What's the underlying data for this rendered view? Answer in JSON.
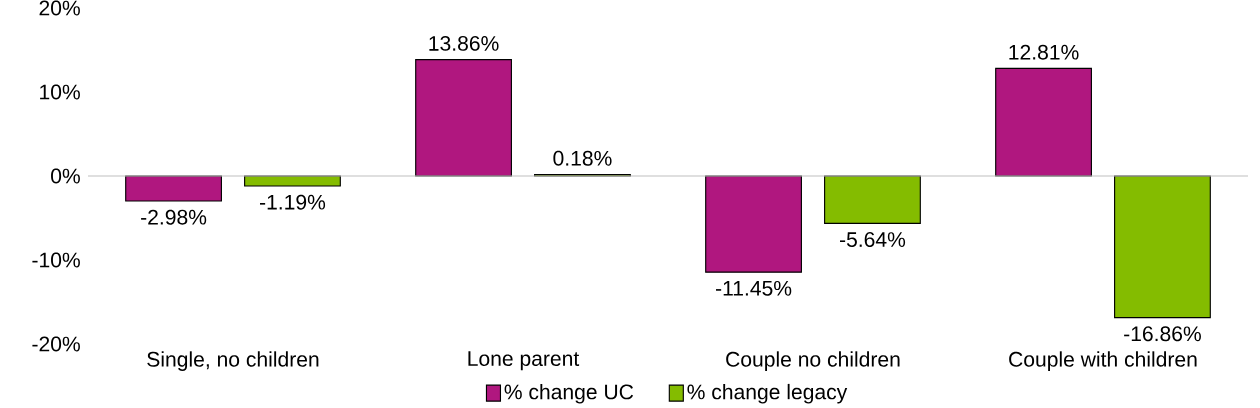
{
  "chart_data": {
    "type": "bar",
    "categories": [
      "Single, no children",
      "Lone parent",
      "Couple no children",
      "Couple with children"
    ],
    "series": [
      {
        "name": "% change UC",
        "color": "#b0177f",
        "values": [
          -2.98,
          13.86,
          -11.45,
          12.81
        ],
        "value_labels": [
          "-2.98%",
          "13.86%",
          "-11.45%",
          "12.81%"
        ]
      },
      {
        "name": "% change legacy",
        "color": "#84bc00",
        "values": [
          -1.19,
          0.18,
          -5.64,
          -16.86
        ],
        "value_labels": [
          "-1.19%",
          "0.18%",
          "-5.64%",
          "-16.86%"
        ]
      }
    ],
    "ylim": [
      -20,
      20
    ],
    "yticks": [
      {
        "value": -20,
        "label": "-20%"
      },
      {
        "value": -10,
        "label": "-10%"
      },
      {
        "value": 0,
        "label": "0%"
      },
      {
        "value": 10,
        "label": "10%"
      },
      {
        "value": 20,
        "label": "20%"
      }
    ],
    "ref_lines": [
      {
        "axis": "y",
        "value": 0,
        "color": "#bfbfbf"
      }
    ],
    "grid": false,
    "legend": "bottom"
  }
}
